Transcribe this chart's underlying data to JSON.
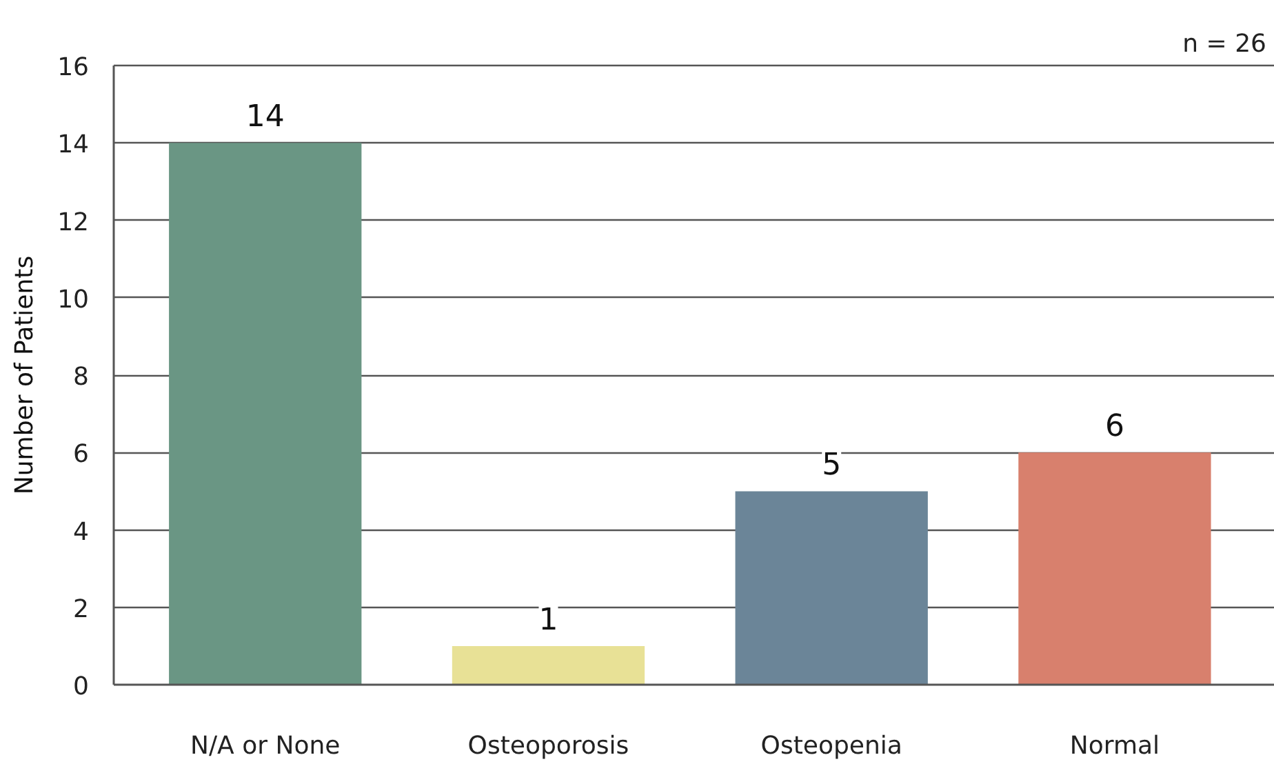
{
  "chart_data": {
    "type": "bar",
    "categories": [
      "N/A or None",
      "Osteoporosis",
      "Osteopenia",
      "Normal"
    ],
    "values": [
      14,
      1,
      5,
      6
    ],
    "colors": [
      "#6a9684",
      "#e8e196",
      "#6b8598",
      "#d8806d"
    ],
    "ylabel": "Number of Patients",
    "ylim": [
      0,
      16
    ],
    "yticks": [
      0,
      2,
      4,
      6,
      8,
      10,
      12,
      14,
      16
    ],
    "grid": "y",
    "data_labels": true,
    "annotations": [
      "n = 26"
    ]
  }
}
